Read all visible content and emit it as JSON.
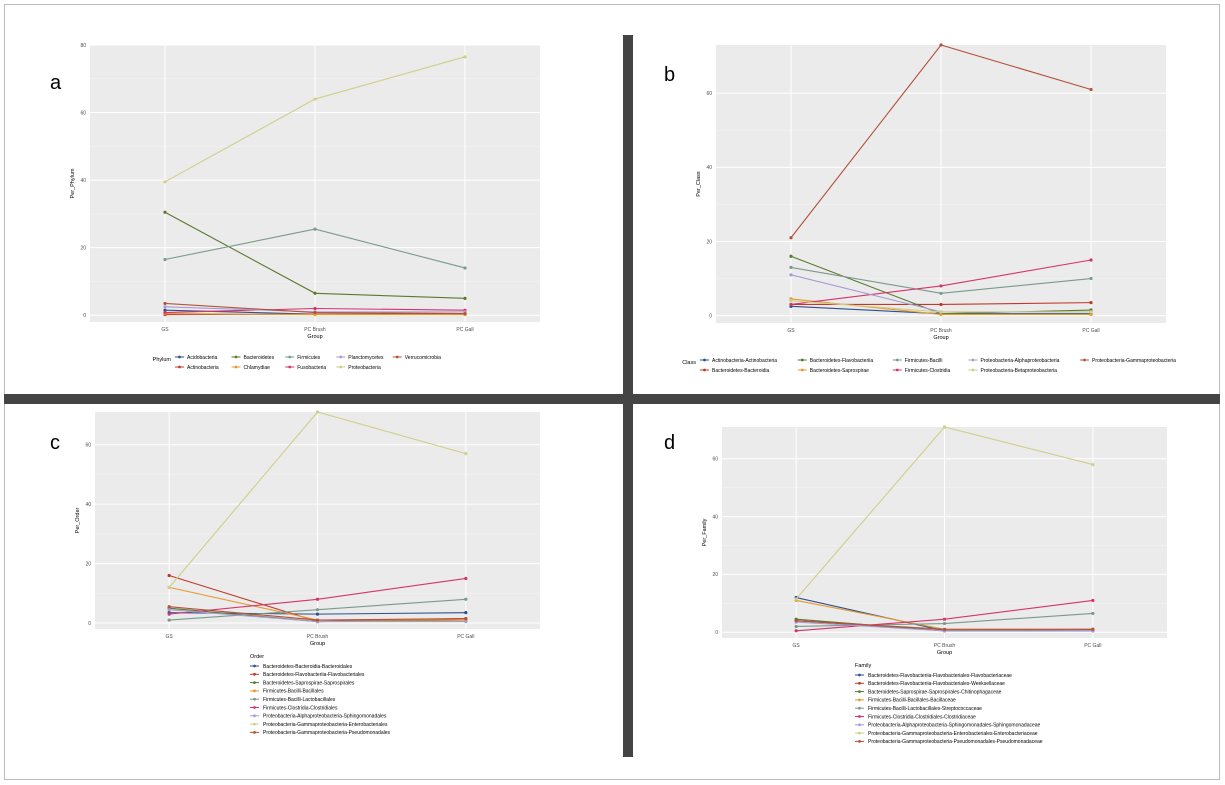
{
  "chart_data": [
    {
      "panel_letter": "a",
      "type": "line",
      "categories": [
        "GS",
        "PC Brush",
        "PC Gall"
      ],
      "xlabel": "Group",
      "ylabel": "Per_Phylum",
      "yticks": [
        0,
        20,
        40,
        60,
        80
      ],
      "ylim": [
        -2,
        80
      ],
      "grid": true,
      "legend_title": "Phylum",
      "legend_layout": "horizontal",
      "series": [
        {
          "name": "Acidobacteria",
          "color": "#2f4f8f",
          "values": [
            1.5,
            0.3,
            0.3
          ]
        },
        {
          "name": "Actinobacteria",
          "color": "#c0392b",
          "values": [
            0.2,
            0.3,
            0.3
          ]
        },
        {
          "name": "Bacteroidetes",
          "color": "#5a7a2e",
          "values": [
            30.5,
            6.5,
            5.0
          ]
        },
        {
          "name": "Chlamydiae",
          "color": "#e69a2e",
          "values": [
            0.5,
            0.2,
            0.2
          ]
        },
        {
          "name": "Firmicutes",
          "color": "#7a9a8a",
          "values": [
            16.5,
            25.5,
            14.0
          ]
        },
        {
          "name": "Fusobacteria",
          "color": "#d6336c",
          "values": [
            0.8,
            2.0,
            1.5
          ]
        },
        {
          "name": "Planctomycetes",
          "color": "#a79bd4",
          "values": [
            2.5,
            1.0,
            1.0
          ]
        },
        {
          "name": "Proteobacteria",
          "color": "#cfcf8a",
          "values": [
            39.5,
            64.0,
            76.5
          ]
        },
        {
          "name": "Verrucomicrobia",
          "color": "#b5523b",
          "values": [
            3.5,
            0.8,
            0.5
          ]
        }
      ]
    },
    {
      "panel_letter": "b",
      "type": "line",
      "categories": [
        "GS",
        "PC Brush",
        "PC Gall"
      ],
      "xlabel": "Group",
      "ylabel": "Per_Class",
      "yticks": [
        0,
        20,
        40,
        60
      ],
      "ylim": [
        -2,
        73
      ],
      "grid": true,
      "legend_title": "Class",
      "legend_layout": "horizontal",
      "series": [
        {
          "name": "Actinobacteria-Actinobacteria",
          "color": "#2f4f8f",
          "values": [
            2.5,
            0.5,
            0.5
          ]
        },
        {
          "name": "Bacteroidetes-Bacteroidia",
          "color": "#c0392b",
          "values": [
            3.0,
            3.0,
            3.5
          ]
        },
        {
          "name": "Bacteroidetes-Flavobacteriia",
          "color": "#5a7a2e",
          "values": [
            16.0,
            0.5,
            1.5
          ]
        },
        {
          "name": "Bacteroidetes-Saprospirae",
          "color": "#e69a2e",
          "values": [
            4.5,
            0.3,
            0.3
          ]
        },
        {
          "name": "Firmicutes-Bacilli",
          "color": "#7a9a8a",
          "values": [
            13.0,
            6.0,
            10.0
          ]
        },
        {
          "name": "Firmicutes-Clostridia",
          "color": "#d6336c",
          "values": [
            3.0,
            8.0,
            15.0
          ]
        },
        {
          "name": "Proteobacteria-Alphaproteobacteria",
          "color": "#a79bd4",
          "values": [
            11.0,
            1.0,
            1.0
          ]
        },
        {
          "name": "Proteobacteria-Betaproteobacteria",
          "color": "#cfcf8a",
          "values": [
            4.0,
            1.0,
            1.0
          ]
        },
        {
          "name": "Proteobacteria-Gammaproteobacteria",
          "color": "#b5523b",
          "values": [
            21.0,
            73.0,
            61.0
          ]
        }
      ]
    },
    {
      "panel_letter": "c",
      "type": "line",
      "categories": [
        "GS",
        "PC Brush",
        "PC Gall"
      ],
      "xlabel": "Group",
      "ylabel": "Per_Order",
      "yticks": [
        0,
        20,
        40,
        60
      ],
      "ylim": [
        -2,
        71
      ],
      "grid": true,
      "legend_title": "Order",
      "legend_layout": "vertical",
      "series": [
        {
          "name": "Bacteroidetes-Bacteroidia-Bacteroidales",
          "color": "#2f4f8f",
          "values": [
            3.5,
            3.0,
            3.5
          ]
        },
        {
          "name": "Bacteroidetes-Flavobacteriia-Flavobacteriales",
          "color": "#c0392b",
          "values": [
            16.0,
            0.5,
            1.5
          ]
        },
        {
          "name": "Bacteroidetes-Saprospirae-Saprospirales",
          "color": "#5a7a2e",
          "values": [
            5.0,
            0.5,
            1.0
          ]
        },
        {
          "name": "Firmicutes-Bacilli-Bacillales",
          "color": "#e69a2e",
          "values": [
            12.0,
            1.0,
            1.0
          ]
        },
        {
          "name": "Firmicutes-Bacilli-Lactobacillales",
          "color": "#7a9a8a",
          "values": [
            1.0,
            4.5,
            8.0
          ]
        },
        {
          "name": "Firmicutes-Clostridia-Clostridiales",
          "color": "#d6336c",
          "values": [
            3.0,
            8.0,
            15.0
          ]
        },
        {
          "name": "Proteobacteria-Alphaproteobacteria-Sphingomonadales",
          "color": "#a79bd4",
          "values": [
            4.5,
            0.5,
            0.5
          ]
        },
        {
          "name": "Proteobacteria-Gammaproteobacteria-Enterobacteriales",
          "color": "#cfcf8a",
          "values": [
            12.0,
            71.0,
            57.0
          ]
        },
        {
          "name": "Proteobacteria-Gammaproteobacteria-Pseudomonadales",
          "color": "#b5523b",
          "values": [
            5.5,
            1.0,
            1.5
          ]
        }
      ]
    },
    {
      "panel_letter": "d",
      "type": "line",
      "categories": [
        "GS",
        "PC Brush",
        "PC Gall"
      ],
      "xlabel": "Group",
      "ylabel": "Per_Family",
      "yticks": [
        0,
        20,
        40,
        60
      ],
      "ylim": [
        -2,
        71
      ],
      "grid": true,
      "legend_title": "Family",
      "legend_layout": "vertical",
      "series": [
        {
          "name": "Bacteroidetes-Flavobacteriia-Flavobacteriales-Flavobacteriaceae",
          "color": "#2f4f8f",
          "values": [
            12.0,
            0.5,
            0.5
          ]
        },
        {
          "name": "Bacteroidetes-Flavobacteriia-Flavobacteriales-Weeksellaceae",
          "color": "#c0392b",
          "values": [
            4.0,
            0.5,
            1.0
          ]
        },
        {
          "name": "Bacteroidetes-Saprospirae-Saprospirales-Chitinophagaceae",
          "color": "#5a7a2e",
          "values": [
            4.5,
            0.5,
            1.0
          ]
        },
        {
          "name": "Firmicutes-Bacilli-Bacillales-Bacillaceae",
          "color": "#e69a2e",
          "values": [
            11.0,
            1.0,
            1.0
          ]
        },
        {
          "name": "Firmicutes-Bacilli-Lactobacillales-Streptococcaceae",
          "color": "#7a9a8a",
          "values": [
            2.0,
            3.0,
            6.5
          ]
        },
        {
          "name": "Firmicutes-Clostridia-Clostridiales-Clostridiaceae",
          "color": "#d6336c",
          "values": [
            0.5,
            4.5,
            11.0
          ]
        },
        {
          "name": "Proteobacteria-Alphaproteobacteria-Sphingomonadales-Sphingomonadaceae",
          "color": "#a79bd4",
          "values": [
            3.5,
            0.5,
            0.5
          ]
        },
        {
          "name": "Proteobacteria-Gammaproteobacteria-Enterobacteriales-Enterobacteriaceae",
          "color": "#cfcf8a",
          "values": [
            11.5,
            71.0,
            58.0
          ]
        },
        {
          "name": "Proteobacteria-Gammaproteobacteria-Pseudomonadales-Pseudomonadaceae",
          "color": "#b5523b",
          "values": [
            4.0,
            1.0,
            1.0
          ]
        }
      ]
    }
  ]
}
